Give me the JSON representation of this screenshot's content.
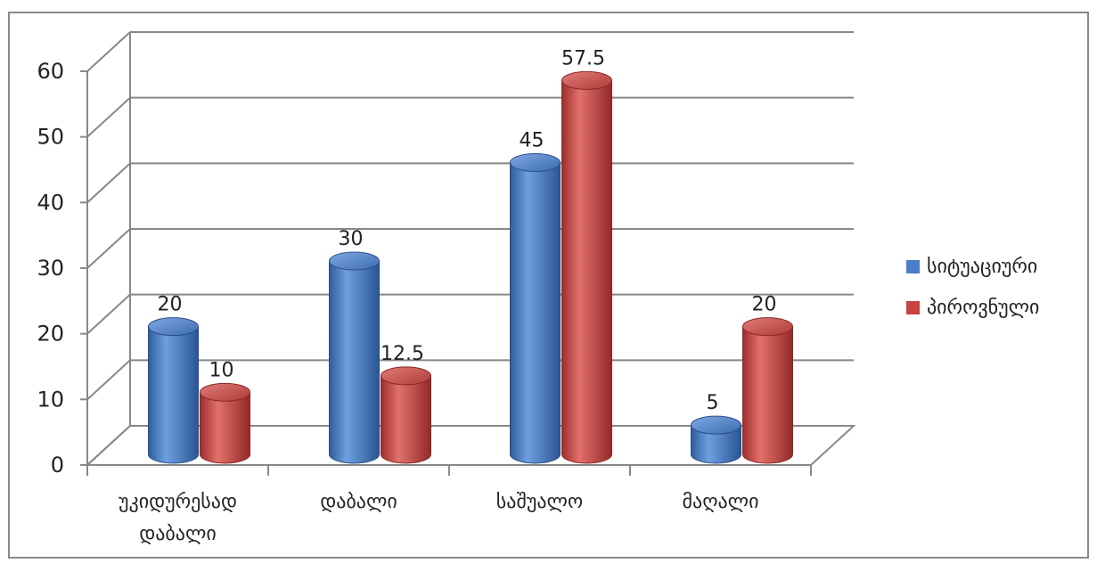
{
  "chart_data": {
    "type": "bar",
    "title": "",
    "xlabel": "",
    "ylabel": "",
    "categories": [
      "უკიდურესად დაბალი",
      "დაბალი",
      "საშუალო",
      "მაღალი"
    ],
    "series": [
      {
        "name": "სიტუაციური",
        "values": [
          20,
          30,
          45,
          5
        ],
        "labels": [
          "20",
          "30",
          "45",
          "5"
        ]
      },
      {
        "name": "პიროვნული",
        "values": [
          10,
          12.5,
          57.5,
          20
        ],
        "labels": [
          "10",
          "12.5",
          "57.5",
          "20"
        ]
      }
    ],
    "ylim": [
      0,
      60
    ],
    "yticks": [
      "0",
      "10",
      "20",
      "30",
      "40",
      "50",
      "60"
    ],
    "grid": true,
    "legend": "right",
    "style": "3d-cylinder",
    "colors": {
      "series1": "#4a7ec8",
      "series2": "#c8423f",
      "grid": "#888888",
      "frame": "#8a8a8a"
    }
  }
}
